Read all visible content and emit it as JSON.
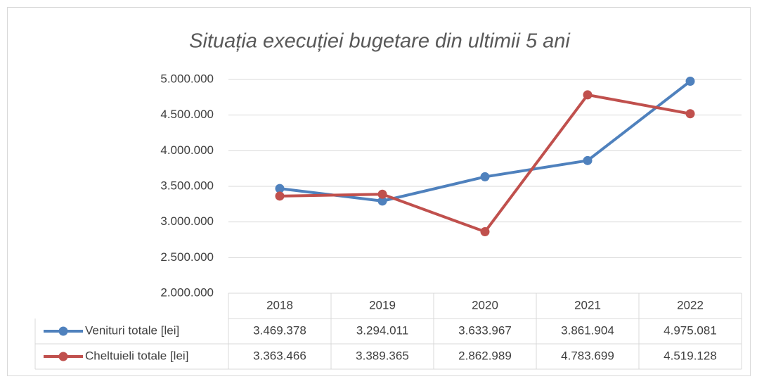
{
  "chart_data": {
    "type": "line",
    "title": "Situația execuției bugetare din ultimii 5 ani",
    "categories": [
      "2018",
      "2019",
      "2020",
      "2021",
      "2022"
    ],
    "series": [
      {
        "name": "Venituri totale [lei]",
        "color": "#4f81bd",
        "values": [
          3469378,
          3294011,
          3633967,
          3861904,
          4975081
        ],
        "value_labels": [
          "3.469.378",
          "3.294.011",
          "3.633.967",
          "3.861.904",
          "4.975.081"
        ]
      },
      {
        "name": "Cheltuieli totale [lei]",
        "color": "#c0504d",
        "values": [
          3363466,
          3389365,
          2862989,
          4783699,
          4519128
        ],
        "value_labels": [
          "3.363.466",
          "3.389.365",
          "2.862.989",
          "4.783.699",
          "4.519.128"
        ]
      }
    ],
    "ylim": [
      2000000,
      5000000
    ],
    "yticks": [
      {
        "value": 2000000,
        "label": "2.000.000"
      },
      {
        "value": 2500000,
        "label": "2.500.000"
      },
      {
        "value": 3000000,
        "label": "3.000.000"
      },
      {
        "value": 3500000,
        "label": "3.500.000"
      },
      {
        "value": 4000000,
        "label": "4.000.000"
      },
      {
        "value": 4500000,
        "label": "4.500.000"
      },
      {
        "value": 5000000,
        "label": "5.000.000"
      }
    ],
    "grid": true
  }
}
